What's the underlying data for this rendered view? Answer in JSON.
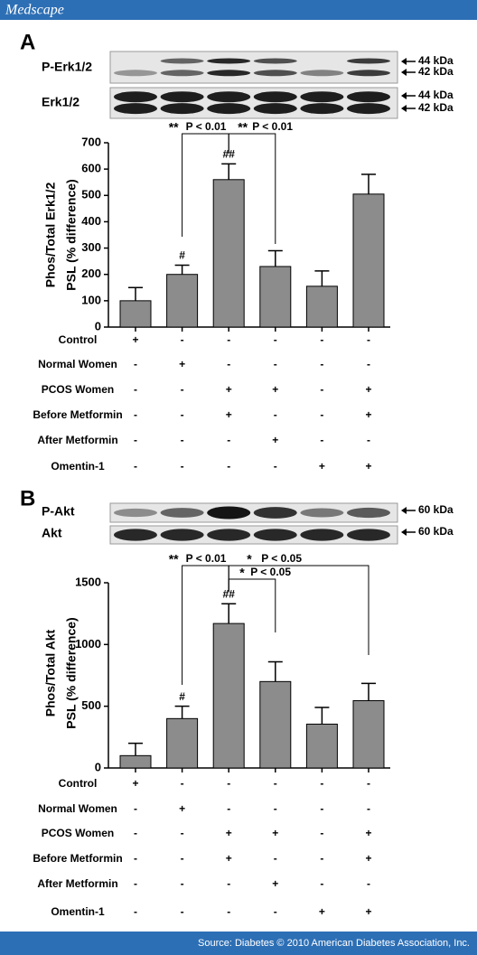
{
  "header": {
    "brand": "Medscape"
  },
  "footer": {
    "source": "Source: Diabetes © 2010 American Diabetes Association, Inc."
  },
  "chart_data": [
    {
      "type": "bar",
      "panel_label": "A",
      "blot_labels": [
        "P-Erk1/2",
        "Erk1/2"
      ],
      "kda_labels": [
        "44 kDa",
        "42 kDa",
        "44 kDa",
        "42 kDa"
      ],
      "ylabel": [
        "Phos/Total Erk1/2",
        "PSL (% difference)"
      ],
      "values": [
        100,
        200,
        560,
        230,
        155,
        505
      ],
      "errors": [
        50,
        35,
        60,
        60,
        58,
        75
      ],
      "value_labels": [
        null,
        "#",
        "##",
        null,
        null,
        null
      ],
      "color": "#8c8c8c",
      "ylim": [
        0,
        700
      ],
      "yticks": [
        0,
        100,
        200,
        300,
        400,
        500,
        600,
        700
      ],
      "annotations": [
        {
          "stars": "**",
          "text": "P < 0.01"
        },
        {
          "stars": "**",
          "text": "P < 0.01"
        }
      ],
      "conditions": [
        {
          "name": "Control",
          "marks": [
            "+",
            "-",
            "-",
            "-",
            "-",
            "-"
          ]
        },
        {
          "name": "Normal Women",
          "marks": [
            "-",
            "+",
            "-",
            "-",
            "-",
            "-"
          ]
        },
        {
          "name": "PCOS Women",
          "marks": [
            "-",
            "-",
            "+",
            "+",
            "-",
            "+"
          ]
        },
        {
          "name": "Before Metformin",
          "marks": [
            "-",
            "-",
            "+",
            "-",
            "-",
            "+"
          ]
        },
        {
          "name": "After Metformin",
          "marks": [
            "-",
            "-",
            "-",
            "+",
            "-",
            "-"
          ]
        },
        {
          "name": "Omentin-1",
          "marks": [
            "-",
            "-",
            "-",
            "-",
            "+",
            "+"
          ]
        }
      ]
    },
    {
      "type": "bar",
      "panel_label": "B",
      "blot_labels": [
        "P-Akt",
        "Akt"
      ],
      "kda_labels": [
        "60 kDa",
        "60 kDa"
      ],
      "ylabel": [
        "Phos/Total Akt",
        "PSL (% difference)"
      ],
      "values": [
        100,
        400,
        1170,
        700,
        355,
        545
      ],
      "errors": [
        100,
        100,
        160,
        160,
        135,
        140
      ],
      "value_labels": [
        null,
        "#",
        "##",
        null,
        null,
        null
      ],
      "color": "#8c8c8c",
      "ylim": [
        0,
        1500
      ],
      "yticks": [
        0,
        500,
        1000,
        1500
      ],
      "annotations": [
        {
          "stars": "**",
          "text": "P < 0.01"
        },
        {
          "stars": "*",
          "text": "P < 0.05"
        },
        {
          "stars": "*",
          "text": "P < 0.05"
        }
      ],
      "conditions": [
        {
          "name": "Control",
          "marks": [
            "+",
            "-",
            "-",
            "-",
            "-",
            "-"
          ]
        },
        {
          "name": "Normal Women",
          "marks": [
            "-",
            "+",
            "-",
            "-",
            "-",
            "-"
          ]
        },
        {
          "name": "PCOS Women",
          "marks": [
            "-",
            "-",
            "+",
            "+",
            "-",
            "+"
          ]
        },
        {
          "name": "Before Metformin",
          "marks": [
            "-",
            "-",
            "+",
            "-",
            "-",
            "+"
          ]
        },
        {
          "name": "After Metformin",
          "marks": [
            "-",
            "-",
            "-",
            "+",
            "-",
            "-"
          ]
        },
        {
          "name": "Omentin-1",
          "marks": [
            "-",
            "-",
            "-",
            "-",
            "+",
            "+"
          ]
        }
      ]
    }
  ]
}
